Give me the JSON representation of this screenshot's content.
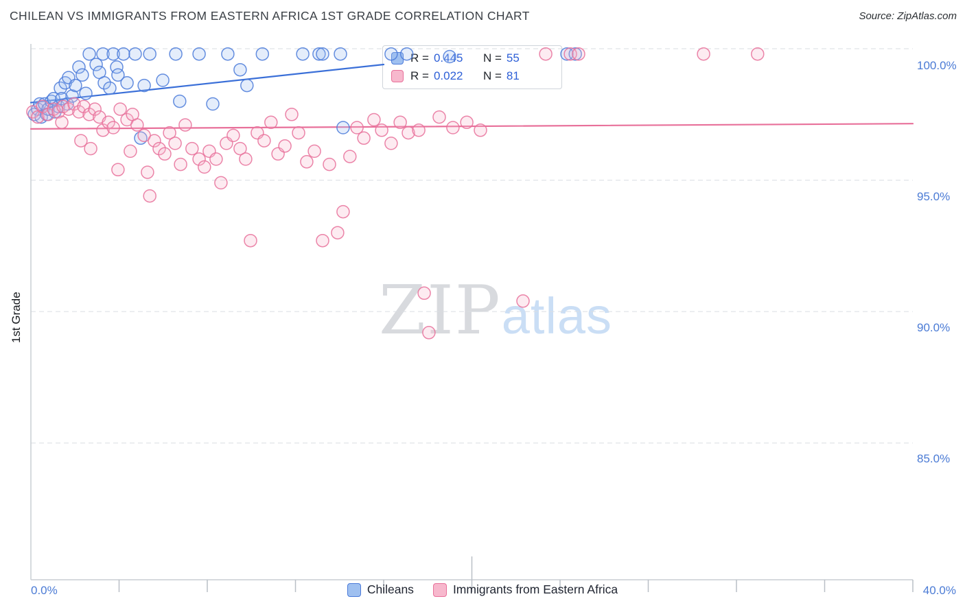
{
  "header": {
    "title": "CHILEAN VS IMMIGRANTS FROM EASTERN AFRICA 1ST GRADE CORRELATION CHART",
    "source": "Source: ZipAtlas.com"
  },
  "watermark": {
    "zip": "ZIP",
    "atlas": "atlas"
  },
  "legend_box": {
    "rows": [
      {
        "r_label": "R =",
        "r_value": "0.445",
        "n_label": "N =",
        "n_value": "55"
      },
      {
        "r_label": "R =",
        "r_value": "0.022",
        "n_label": "N =",
        "n_value": "81"
      }
    ]
  },
  "axes": {
    "y_title": "1st Grade",
    "x_min_label": "0.0%",
    "x_max_label": "40.0%",
    "y_tick_labels": [
      "100.0%",
      "95.0%",
      "90.0%",
      "85.0%"
    ]
  },
  "bottom_legend": {
    "items": [
      {
        "label": "Chileans"
      },
      {
        "label": "Immigrants from Eastern Africa"
      }
    ]
  },
  "chart_data": {
    "type": "scatter",
    "title": "CHILEAN VS IMMIGRANTS FROM EASTERN AFRICA 1ST GRADE CORRELATION CHART",
    "xlabel": "",
    "ylabel": "1st Grade",
    "xlim": [
      0,
      40
    ],
    "ylim": [
      79.8,
      100.7
    ],
    "x_axis_unit": "%",
    "y_axis_unit": "%",
    "y_gridlines": [
      100,
      95,
      90,
      85
    ],
    "y_tick_labels": [
      "100.0%",
      "95.0%",
      "90.0%",
      "85.0%"
    ],
    "x_ticks": [
      4,
      8,
      12,
      16,
      20,
      24,
      28,
      32,
      36,
      40
    ],
    "grid": "dashed-horizontal",
    "legend_position": "top-center-box and bottom-center",
    "series": [
      {
        "name": "Chileans",
        "R": 0.445,
        "N": 55,
        "color": "#4a7ad9",
        "fill": "#9fc0f0",
        "points": [
          [
            0.16,
            97.5
          ],
          [
            0.31,
            97.7
          ],
          [
            0.4,
            97.9
          ],
          [
            0.47,
            97.4
          ],
          [
            0.62,
            97.9
          ],
          [
            0.72,
            97.5
          ],
          [
            0.78,
            97.7
          ],
          [
            0.93,
            98.0
          ],
          [
            1.03,
            98.1
          ],
          [
            1.09,
            97.6
          ],
          [
            1.25,
            97.8
          ],
          [
            1.34,
            98.5
          ],
          [
            1.4,
            98.1
          ],
          [
            1.56,
            98.7
          ],
          [
            1.65,
            97.9
          ],
          [
            1.71,
            98.9
          ],
          [
            1.87,
            98.2
          ],
          [
            2.02,
            98.6
          ],
          [
            2.18,
            99.3
          ],
          [
            2.33,
            99.0
          ],
          [
            2.49,
            98.3
          ],
          [
            2.96,
            99.4
          ],
          [
            3.11,
            99.1
          ],
          [
            3.33,
            98.7
          ],
          [
            3.58,
            98.5
          ],
          [
            3.89,
            99.3
          ],
          [
            3.95,
            99.0
          ],
          [
            4.36,
            98.7
          ],
          [
            4.98,
            96.6
          ],
          [
            5.14,
            98.6
          ],
          [
            5.98,
            98.8
          ],
          [
            6.75,
            98.0
          ],
          [
            8.25,
            97.9
          ],
          [
            9.49,
            99.2
          ],
          [
            9.8,
            98.6
          ],
          [
            2.65,
            99.8
          ],
          [
            3.27,
            99.8
          ],
          [
            3.74,
            99.8
          ],
          [
            4.2,
            99.8
          ],
          [
            4.73,
            99.8
          ],
          [
            5.39,
            99.8
          ],
          [
            6.57,
            99.8
          ],
          [
            7.63,
            99.8
          ],
          [
            8.93,
            99.8
          ],
          [
            10.5,
            99.8
          ],
          [
            12.33,
            99.8
          ],
          [
            13.07,
            99.8
          ],
          [
            13.23,
            99.8
          ],
          [
            14.04,
            99.8
          ],
          [
            16.34,
            99.8
          ],
          [
            17.05,
            99.8
          ],
          [
            24.31,
            99.8
          ],
          [
            24.69,
            99.8
          ],
          [
            14.16,
            97.0
          ],
          [
            18.99,
            99.7
          ]
        ]
      },
      {
        "name": "Immigrants from Eastern Africa",
        "R": 0.022,
        "N": 81,
        "color": "#e8709a",
        "fill": "#f7b8cd",
        "points": [
          [
            0.09,
            97.6
          ],
          [
            0.31,
            97.4
          ],
          [
            0.53,
            97.8
          ],
          [
            0.78,
            97.5
          ],
          [
            1.03,
            97.7
          ],
          [
            1.25,
            97.6
          ],
          [
            1.4,
            97.2
          ],
          [
            1.46,
            97.8
          ],
          [
            1.71,
            97.7
          ],
          [
            1.96,
            97.9
          ],
          [
            2.18,
            97.6
          ],
          [
            2.27,
            96.5
          ],
          [
            2.4,
            97.8
          ],
          [
            2.65,
            97.5
          ],
          [
            2.71,
            96.2
          ],
          [
            2.9,
            97.7
          ],
          [
            3.11,
            97.4
          ],
          [
            3.27,
            96.9
          ],
          [
            3.52,
            97.2
          ],
          [
            3.74,
            97.0
          ],
          [
            3.95,
            95.4
          ],
          [
            4.05,
            97.7
          ],
          [
            4.36,
            97.3
          ],
          [
            4.51,
            96.1
          ],
          [
            4.61,
            97.5
          ],
          [
            4.82,
            97.1
          ],
          [
            5.14,
            96.7
          ],
          [
            5.29,
            95.3
          ],
          [
            5.39,
            94.4
          ],
          [
            5.6,
            96.5
          ],
          [
            5.82,
            96.2
          ],
          [
            6.07,
            96.0
          ],
          [
            6.29,
            96.8
          ],
          [
            6.54,
            96.4
          ],
          [
            6.79,
            95.6
          ],
          [
            7.0,
            97.1
          ],
          [
            7.31,
            96.2
          ],
          [
            7.63,
            95.8
          ],
          [
            7.87,
            95.5
          ],
          [
            8.09,
            96.1
          ],
          [
            8.4,
            95.8
          ],
          [
            8.62,
            94.9
          ],
          [
            8.87,
            96.4
          ],
          [
            9.18,
            96.7
          ],
          [
            9.49,
            96.2
          ],
          [
            9.74,
            95.8
          ],
          [
            9.96,
            92.7
          ],
          [
            10.27,
            96.8
          ],
          [
            10.58,
            96.5
          ],
          [
            10.89,
            97.2
          ],
          [
            11.21,
            96.0
          ],
          [
            11.52,
            96.3
          ],
          [
            11.83,
            97.5
          ],
          [
            12.14,
            96.8
          ],
          [
            12.51,
            95.7
          ],
          [
            12.86,
            96.1
          ],
          [
            13.23,
            92.7
          ],
          [
            13.54,
            95.6
          ],
          [
            13.91,
            93.0
          ],
          [
            14.16,
            93.8
          ],
          [
            14.47,
            95.9
          ],
          [
            14.79,
            97.0
          ],
          [
            15.1,
            96.6
          ],
          [
            15.56,
            97.3
          ],
          [
            15.91,
            96.9
          ],
          [
            16.34,
            96.4
          ],
          [
            16.75,
            97.2
          ],
          [
            17.12,
            96.8
          ],
          [
            17.59,
            96.9
          ],
          [
            17.84,
            90.7
          ],
          [
            18.05,
            89.2
          ],
          [
            18.52,
            97.4
          ],
          [
            19.14,
            97.0
          ],
          [
            19.77,
            97.2
          ],
          [
            20.39,
            96.9
          ],
          [
            22.32,
            90.4
          ],
          [
            23.35,
            99.8
          ],
          [
            24.47,
            99.8
          ],
          [
            24.84,
            99.8
          ],
          [
            30.51,
            99.8
          ],
          [
            32.96,
            99.8
          ]
        ]
      }
    ],
    "trend_lines": [
      {
        "series": "Chileans",
        "color": "#3a6fd8",
        "x1": 0,
        "y1": 97.95,
        "x2": 16.0,
        "y2": 99.4
      },
      {
        "series": "Immigrants from Eastern Africa",
        "color": "#e8709a",
        "x1": 0,
        "y1": 96.95,
        "x2": 40,
        "y2": 97.15
      }
    ]
  }
}
